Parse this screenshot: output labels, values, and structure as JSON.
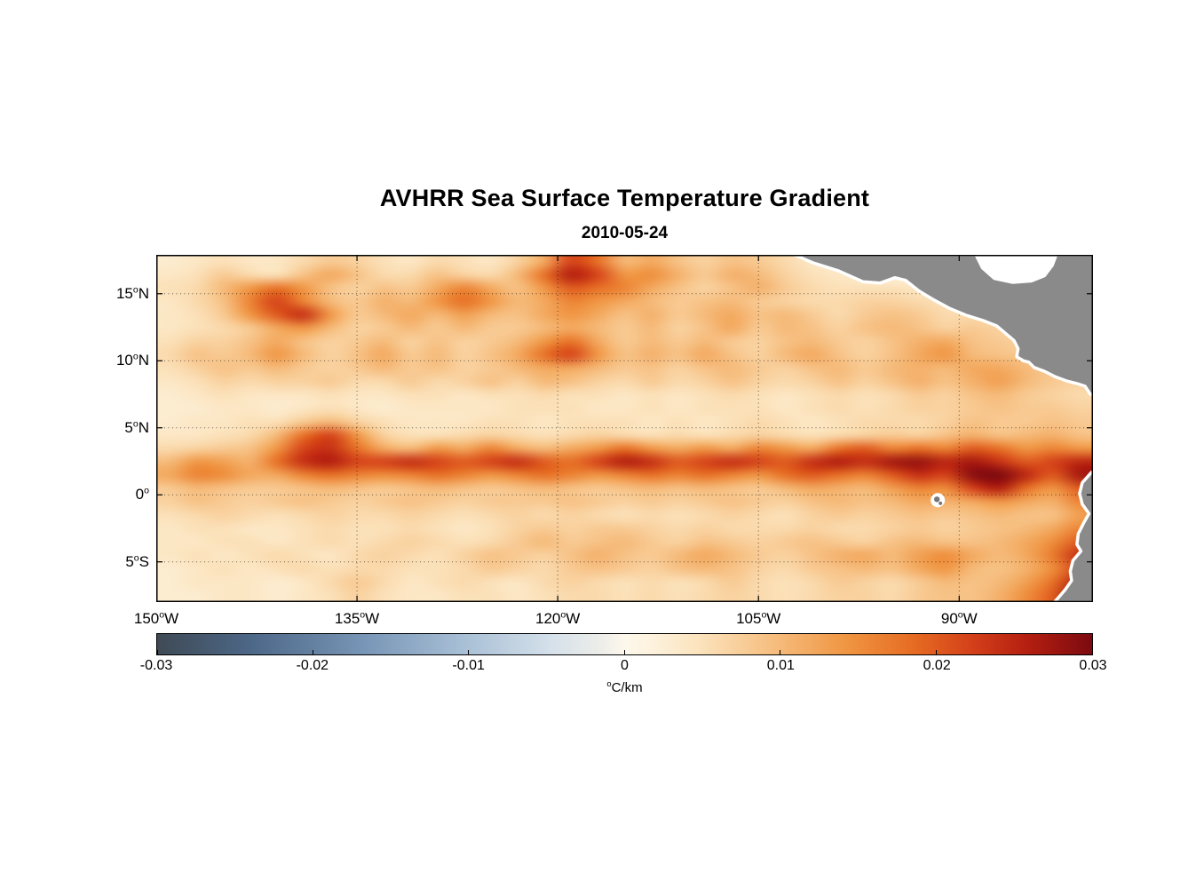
{
  "chart_data": {
    "type": "heatmap",
    "title": "AVHRR Sea Surface Temperature Gradient",
    "date": "2010-05-24",
    "degree_symbol": "o",
    "region": "Eastern tropical Pacific ocean; gray = land / masked area (Central America top right, South America bottom right, Galapagos islands near 91W,0.5S)",
    "description": "Magnitude of sea surface temperature gradient. Strong wavy front along 1-3N across the whole basin (tropical instability waves), patchy fronts between 10N and 18N, quiet band 5-8N, weak secondary band near 1S, enhanced gradients off Central America and very strong gradients along the Peru coast in the southeast corner.",
    "lon_range_deg_east": [
      -150,
      -80
    ],
    "lat_range_deg_north": [
      -8,
      17.9
    ],
    "lat_ticks": [
      {
        "value": 15,
        "num": "15",
        "hem": "N"
      },
      {
        "value": 10,
        "num": "10",
        "hem": "N"
      },
      {
        "value": 5,
        "num": "5",
        "hem": "N"
      },
      {
        "value": 0,
        "num": "0",
        "hem": ""
      },
      {
        "value": -5,
        "num": "5",
        "hem": "S"
      }
    ],
    "lon_ticks": [
      {
        "value": -150,
        "num": "150",
        "hem": "W"
      },
      {
        "value": -135,
        "num": "135",
        "hem": "W"
      },
      {
        "value": -120,
        "num": "120",
        "hem": "W"
      },
      {
        "value": -105,
        "num": "105",
        "hem": "W"
      },
      {
        "value": -90,
        "num": "90",
        "hem": "W"
      }
    ],
    "colorbar": {
      "orientation": "horizontal",
      "min": -0.03,
      "max": 0.03,
      "ticks": [
        "-0.03",
        "-0.02",
        "-0.01",
        "0",
        "0.01",
        "0.02",
        "0.03"
      ],
      "unit_sup": "o",
      "unit": "C/km",
      "stops": [
        [
          0.0,
          "#3f4a55"
        ],
        [
          0.1,
          "#4d6787"
        ],
        [
          0.22,
          "#7795b6"
        ],
        [
          0.33,
          "#a9c0d6"
        ],
        [
          0.42,
          "#d4e0ea"
        ],
        [
          0.48,
          "#f0efe9"
        ],
        [
          0.5,
          "#fdf8ec"
        ],
        [
          0.53,
          "#fdf2dd"
        ],
        [
          0.58,
          "#fbe3bc"
        ],
        [
          0.66,
          "#f6bd7e"
        ],
        [
          0.74,
          "#ef9440"
        ],
        [
          0.81,
          "#e66b22"
        ],
        [
          0.87,
          "#d4411a"
        ],
        [
          0.93,
          "#b51f10"
        ],
        [
          1.0,
          "#7c0a10"
        ]
      ]
    },
    "grid": {
      "units": "degC/km",
      "value_scale": 0.001,
      "lon_start": -149,
      "lon_step": 2,
      "lat_start": 17.5,
      "lat_step": -1,
      "rows": [
        [
          3,
          4,
          5,
          4,
          4,
          6,
          8,
          7,
          5,
          4,
          6,
          5,
          4,
          7,
          12,
          22,
          18,
          10,
          12,
          9,
          7,
          9,
          8,
          6,
          4,
          3,
          2,
          2,
          2,
          2,
          2,
          2,
          2,
          2,
          2
        ],
        [
          4,
          5,
          8,
          6,
          5,
          9,
          12,
          9,
          6,
          6,
          9,
          7,
          6,
          10,
          18,
          26,
          22,
          14,
          15,
          11,
          8,
          11,
          10,
          7,
          5,
          4,
          3,
          2,
          2,
          2,
          2,
          2,
          2,
          2,
          2
        ],
        [
          5,
          6,
          10,
          14,
          18,
          14,
          9,
          7,
          9,
          8,
          12,
          16,
          12,
          9,
          14,
          20,
          18,
          16,
          12,
          9,
          7,
          9,
          11,
          8,
          6,
          5,
          5,
          5,
          4,
          3,
          2,
          2,
          2,
          2,
          2
        ],
        [
          4,
          6,
          9,
          16,
          22,
          16,
          10,
          8,
          11,
          10,
          14,
          18,
          14,
          10,
          12,
          16,
          14,
          12,
          10,
          8,
          9,
          10,
          8,
          7,
          6,
          6,
          7,
          7,
          6,
          5,
          4,
          3,
          3,
          3,
          3
        ],
        [
          4,
          5,
          8,
          14,
          20,
          24,
          14,
          8,
          10,
          12,
          10,
          13,
          10,
          9,
          12,
          14,
          12,
          9,
          11,
          8,
          10,
          12,
          9,
          10,
          8,
          6,
          8,
          9,
          8,
          6,
          6,
          5,
          4,
          4,
          4
        ],
        [
          4,
          5,
          6,
          8,
          12,
          14,
          10,
          7,
          8,
          10,
          8,
          10,
          8,
          8,
          10,
          12,
          10,
          8,
          10,
          7,
          9,
          12,
          8,
          10,
          9,
          7,
          9,
          10,
          9,
          7,
          8,
          7,
          6,
          5,
          5
        ],
        [
          5,
          7,
          7,
          9,
          12,
          9,
          7,
          8,
          10,
          7,
          9,
          7,
          8,
          10,
          14,
          18,
          12,
          8,
          10,
          8,
          10,
          8,
          7,
          9,
          10,
          8,
          7,
          9,
          11,
          12,
          9,
          8,
          7,
          6,
          5
        ],
        [
          6,
          9,
          8,
          10,
          14,
          10,
          7,
          9,
          12,
          8,
          10,
          7,
          9,
          12,
          18,
          22,
          14,
          9,
          11,
          9,
          12,
          9,
          7,
          10,
          12,
          9,
          7,
          9,
          12,
          14,
          10,
          9,
          8,
          7,
          6
        ],
        [
          5,
          7,
          9,
          8,
          10,
          8,
          7,
          8,
          10,
          8,
          9,
          7,
          8,
          10,
          12,
          12,
          10,
          8,
          9,
          7,
          9,
          10,
          8,
          7,
          9,
          10,
          8,
          10,
          11,
          10,
          12,
          12,
          10,
          8,
          7
        ],
        [
          4,
          5,
          7,
          6,
          7,
          7,
          8,
          6,
          6,
          8,
          6,
          7,
          9,
          7,
          10,
          9,
          7,
          6,
          8,
          6,
          7,
          9,
          7,
          6,
          7,
          9,
          7,
          9,
          11,
          9,
          11,
          13,
          10,
          8,
          7
        ],
        [
          3,
          4,
          5,
          4,
          4,
          4,
          5,
          4,
          4,
          5,
          5,
          4,
          5,
          5,
          6,
          5,
          5,
          4,
          5,
          4,
          5,
          6,
          5,
          4,
          5,
          6,
          5,
          6,
          8,
          7,
          9,
          10,
          8,
          7,
          6
        ],
        [
          3,
          3,
          4,
          4,
          3,
          4,
          5,
          4,
          3,
          4,
          4,
          4,
          4,
          5,
          5,
          5,
          4,
          4,
          5,
          4,
          5,
          5,
          5,
          4,
          5,
          6,
          5,
          6,
          7,
          7,
          8,
          9,
          8,
          8,
          7
        ],
        [
          3,
          4,
          4,
          5,
          5,
          8,
          10,
          7,
          5,
          4,
          4,
          4,
          5,
          5,
          4,
          5,
          5,
          5,
          4,
          5,
          4,
          5,
          6,
          5,
          4,
          5,
          6,
          6,
          6,
          7,
          9,
          8,
          8,
          9,
          8
        ],
        [
          4,
          4,
          5,
          6,
          10,
          18,
          22,
          14,
          7,
          5,
          5,
          6,
          7,
          6,
          5,
          6,
          7,
          6,
          5,
          6,
          5,
          6,
          7,
          6,
          5,
          6,
          7,
          8,
          7,
          9,
          11,
          9,
          10,
          11,
          9
        ],
        [
          6,
          7,
          8,
          9,
          14,
          22,
          24,
          18,
          12,
          10,
          14,
          12,
          16,
          12,
          10,
          12,
          14,
          18,
          14,
          12,
          14,
          12,
          16,
          14,
          12,
          18,
          20,
          16,
          18,
          16,
          20,
          18,
          14,
          16,
          14
        ],
        [
          10,
          14,
          13,
          11,
          18,
          24,
          26,
          22,
          22,
          24,
          22,
          20,
          22,
          24,
          20,
          18,
          22,
          26,
          24,
          20,
          22,
          24,
          22,
          20,
          24,
          26,
          24,
          27,
          28,
          25,
          27,
          24,
          20,
          22,
          25
        ],
        [
          12,
          16,
          15,
          12,
          12,
          16,
          18,
          16,
          15,
          16,
          18,
          16,
          14,
          16,
          18,
          16,
          14,
          16,
          18,
          16,
          18,
          16,
          14,
          18,
          20,
          18,
          16,
          20,
          24,
          22,
          29,
          30,
          25,
          20,
          27
        ],
        [
          8,
          10,
          9,
          8,
          8,
          9,
          10,
          9,
          8,
          9,
          10,
          9,
          8,
          9,
          10,
          9,
          8,
          9,
          10,
          9,
          10,
          9,
          8,
          10,
          12,
          11,
          10,
          13,
          16,
          15,
          22,
          26,
          18,
          14,
          20
        ],
        [
          7,
          9,
          8,
          7,
          8,
          9,
          8,
          7,
          8,
          9,
          8,
          7,
          8,
          8,
          8,
          9,
          8,
          7,
          8,
          7,
          8,
          9,
          8,
          7,
          9,
          10,
          9,
          10,
          12,
          11,
          12,
          14,
          12,
          11,
          16
        ],
        [
          5,
          6,
          7,
          6,
          5,
          6,
          7,
          6,
          6,
          7,
          6,
          5,
          6,
          7,
          6,
          7,
          6,
          5,
          6,
          5,
          6,
          7,
          6,
          5,
          7,
          8,
          7,
          8,
          9,
          8,
          9,
          10,
          9,
          9,
          13
        ],
        [
          4,
          5,
          5,
          4,
          4,
          5,
          6,
          5,
          5,
          6,
          5,
          4,
          5,
          7,
          8,
          7,
          8,
          8,
          7,
          6,
          7,
          6,
          6,
          6,
          7,
          6,
          6,
          7,
          8,
          7,
          8,
          9,
          10,
          12,
          16
        ],
        [
          4,
          4,
          5,
          5,
          4,
          5,
          6,
          5,
          6,
          7,
          6,
          5,
          6,
          8,
          10,
          8,
          9,
          10,
          8,
          7,
          9,
          8,
          7,
          8,
          9,
          8,
          7,
          9,
          10,
          9,
          9,
          10,
          12,
          15,
          20
        ],
        [
          4,
          5,
          4,
          5,
          6,
          5,
          4,
          6,
          7,
          6,
          5,
          7,
          9,
          8,
          7,
          9,
          11,
          9,
          8,
          10,
          12,
          10,
          8,
          7,
          9,
          11,
          12,
          10,
          13,
          15,
          12,
          10,
          12,
          17,
          24
        ],
        [
          3,
          4,
          5,
          4,
          5,
          6,
          5,
          6,
          6,
          5,
          5,
          6,
          8,
          7,
          6,
          8,
          9,
          8,
          7,
          9,
          10,
          9,
          7,
          6,
          8,
          9,
          10,
          9,
          12,
          14,
          10,
          9,
          11,
          15,
          22
        ],
        [
          3,
          4,
          4,
          4,
          3,
          4,
          6,
          8,
          6,
          4,
          5,
          6,
          5,
          4,
          6,
          7,
          6,
          5,
          6,
          5,
          6,
          8,
          6,
          5,
          6,
          8,
          7,
          6,
          8,
          10,
          9,
          10,
          13,
          18,
          26
        ],
        [
          3,
          3,
          4,
          4,
          3,
          4,
          5,
          7,
          5,
          4,
          4,
          5,
          5,
          4,
          5,
          6,
          6,
          5,
          6,
          5,
          6,
          7,
          6,
          5,
          6,
          7,
          7,
          6,
          8,
          9,
          9,
          11,
          15,
          20,
          30
        ]
      ]
    },
    "land": {
      "fill": "#8a8a8a",
      "outline": "#ffffff",
      "polygons": {
        "central_america": [
          [
            -102.3,
            17.9
          ],
          [
            -100.9,
            17.3
          ],
          [
            -99.0,
            16.7
          ],
          [
            -97.2,
            15.9
          ],
          [
            -95.9,
            15.8
          ],
          [
            -94.8,
            16.2
          ],
          [
            -94.0,
            16.0
          ],
          [
            -93.0,
            15.2
          ],
          [
            -92.0,
            14.6
          ],
          [
            -90.7,
            13.9
          ],
          [
            -89.5,
            13.4
          ],
          [
            -88.2,
            13.0
          ],
          [
            -87.2,
            12.6
          ],
          [
            -86.6,
            12.1
          ],
          [
            -85.9,
            11.5
          ],
          [
            -85.6,
            10.9
          ],
          [
            -85.7,
            10.3
          ],
          [
            -85.2,
            10.0
          ],
          [
            -84.8,
            9.9
          ],
          [
            -84.4,
            9.5
          ],
          [
            -83.6,
            9.2
          ],
          [
            -82.8,
            8.8
          ],
          [
            -82.0,
            8.5
          ],
          [
            -81.2,
            8.3
          ],
          [
            -80.6,
            8.1
          ],
          [
            -80.2,
            7.5
          ],
          [
            -79.4,
            7.3
          ],
          [
            -79.4,
            17.9
          ]
        ],
        "caribbean_mask": [
          [
            -88.8,
            17.9
          ],
          [
            -88.3,
            16.9
          ],
          [
            -87.4,
            16.1
          ],
          [
            -86.0,
            15.8
          ],
          [
            -84.6,
            15.9
          ],
          [
            -83.6,
            16.3
          ],
          [
            -83.0,
            17.1
          ],
          [
            -82.7,
            17.9
          ]
        ],
        "south_america": [
          [
            -80.1,
            1.7
          ],
          [
            -80.8,
            0.9
          ],
          [
            -81.0,
            0.1
          ],
          [
            -80.8,
            -0.7
          ],
          [
            -80.3,
            -1.4
          ],
          [
            -80.7,
            -2.1
          ],
          [
            -81.1,
            -2.9
          ],
          [
            -81.2,
            -3.7
          ],
          [
            -80.9,
            -4.2
          ],
          [
            -81.5,
            -4.9
          ],
          [
            -81.7,
            -5.7
          ],
          [
            -81.6,
            -6.4
          ],
          [
            -82.1,
            -7.1
          ],
          [
            -82.7,
            -7.8
          ],
          [
            -82.9,
            -8.0
          ],
          [
            -78.0,
            -8.0
          ],
          [
            -78.0,
            1.7
          ]
        ]
      },
      "galapagos": {
        "lon": -91.6,
        "lat": -0.4
      }
    }
  }
}
